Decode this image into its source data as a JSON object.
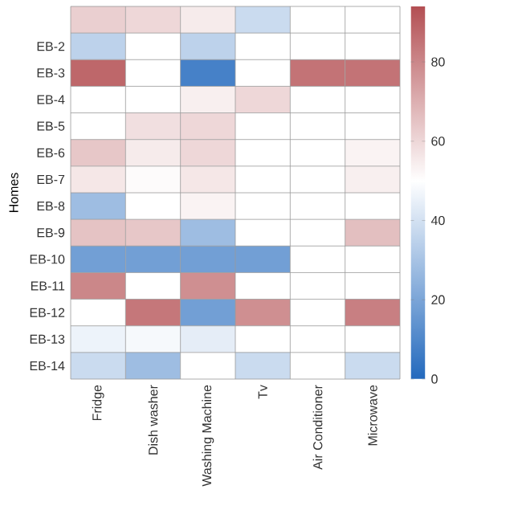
{
  "chart_data": {
    "type": "heatmap",
    "ylabel": "Homes",
    "categories": [
      "Fridge",
      "Dish washer",
      "Washing Machine",
      "Tv",
      "Air Conditioner",
      "Microwave"
    ],
    "y_categories": [
      null,
      "EB-2",
      "EB-3",
      "EB-4",
      "EB-5",
      "EB-6",
      "EB-7",
      "EB-8",
      "EB-9",
      "EB-10",
      "EB-11",
      "EB-12",
      "EB-13",
      "EB-14"
    ],
    "cells": [
      [
        62,
        60,
        55,
        38,
        50,
        50
      ],
      [
        35,
        50,
        35,
        50,
        50,
        50
      ],
      [
        88,
        50,
        8,
        50,
        85,
        85
      ],
      [
        50,
        50,
        54,
        60,
        50,
        50
      ],
      [
        50,
        58,
        60,
        50,
        50,
        50
      ],
      [
        64,
        55,
        60,
        50,
        50,
        53
      ],
      [
        56,
        51,
        56,
        50,
        50,
        54
      ],
      [
        28,
        50,
        53,
        50,
        50,
        50
      ],
      [
        65,
        64,
        28,
        50,
        50,
        66
      ],
      [
        18,
        18,
        18,
        18,
        50,
        50
      ],
      [
        80,
        50,
        78,
        50,
        50,
        50
      ],
      [
        50,
        84,
        18,
        78,
        50,
        82
      ],
      [
        46,
        48,
        44,
        50,
        50,
        50
      ],
      [
        38,
        28,
        50,
        38,
        50,
        38
      ]
    ],
    "clim": [
      0,
      94
    ],
    "cticks": [
      0,
      20,
      40,
      60,
      80
    ]
  }
}
